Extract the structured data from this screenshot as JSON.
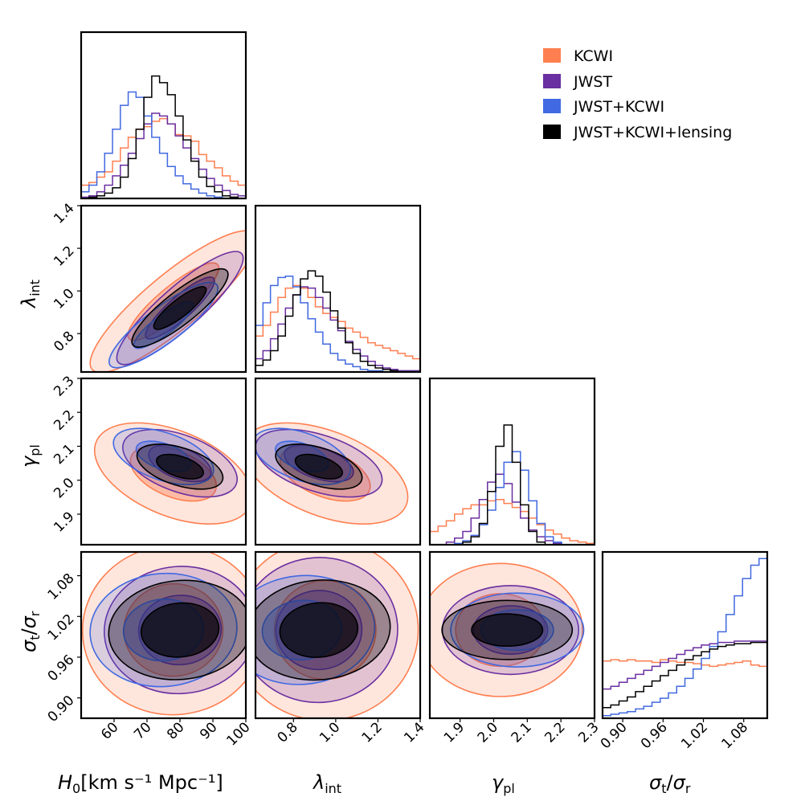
{
  "chart_data": {
    "type": "corner",
    "parameters": [
      "H0",
      "lambda_int",
      "gamma_pl",
      "sigma_ratio"
    ],
    "axis_labels": {
      "H0": "[km s⁻¹ Mpc⁻¹]",
      "lambda_int": "",
      "gamma_pl": "",
      "sigma_ratio": ""
    },
    "ranges": {
      "H0": [
        50,
        100
      ],
      "lambda_int": [
        0.62,
        1.4
      ],
      "gamma_pl": [
        1.81,
        2.3
      ],
      "sigma_ratio": [
        0.87,
        1.115
      ]
    },
    "ticks": {
      "H0": [
        "60",
        "70",
        "80",
        "90",
        "100"
      ],
      "lambda_int": [
        "0.8",
        "1.0",
        "1.2",
        "1.4"
      ],
      "gamma_pl": [
        "1.9",
        "2.0",
        "2.1",
        "2.2",
        "2.3"
      ],
      "sigma_ratio": [
        "0.90",
        "0.96",
        "1.02",
        "1.08"
      ],
      "lambda_int_y": [
        "0.8",
        "1.0",
        "1.2",
        "1.4"
      ],
      "gamma_pl_y": [
        "1.9",
        "2.0",
        "2.1",
        "2.2",
        "2.3"
      ],
      "sigma_ratio_y": [
        "0.90",
        "0.96",
        "1.02",
        "1.08"
      ]
    },
    "legend_position": "top-right",
    "series": [
      {
        "name": "KCWI",
        "color": "#ff7f50",
        "mean": {
          "H0": 78,
          "lambda_int": 0.95,
          "gamma_pl": 2.02,
          "sigma_ratio": 1.0
        },
        "std": {
          "H0": 12,
          "lambda_int": 0.2,
          "gamma_pl": 0.09,
          "sigma_ratio": 0.08
        },
        "hist": {
          "H0": [
            0.1,
            0.12,
            0.16,
            0.2,
            0.28,
            0.38,
            0.46,
            0.52,
            0.54,
            0.58,
            0.6,
            0.56,
            0.48,
            0.47,
            0.43,
            0.33,
            0.28,
            0.23,
            0.17,
            0.13,
            0.1
          ],
          "lambda_int": [
            0.27,
            0.35,
            0.45,
            0.56,
            0.63,
            0.65,
            0.63,
            0.56,
            0.49,
            0.44,
            0.41,
            0.38,
            0.33,
            0.3,
            0.26,
            0.22,
            0.2,
            0.18,
            0.16,
            0.14,
            0.12,
            0.1
          ],
          "gamma_pl": [
            0.1,
            0.14,
            0.18,
            0.23,
            0.27,
            0.3,
            0.3,
            0.33,
            0.34,
            0.31,
            0.28,
            0.25,
            0.2,
            0.15,
            0.11,
            0.08,
            0.05,
            0.03,
            0.02,
            0.01
          ],
          "sigma_ratio": [
            0.43,
            0.44,
            0.43,
            0.44,
            0.43,
            0.43,
            0.42,
            0.44,
            0.43,
            0.42,
            0.42,
            0.41,
            0.4,
            0.39,
            0.4,
            0.41,
            0.42,
            0.43,
            0.4,
            0.39
          ]
        }
      },
      {
        "name": "JWST",
        "color": "#6a2fa0",
        "mean": {
          "H0": 80,
          "lambda_int": 0.92,
          "gamma_pl": 2.05,
          "sigma_ratio": 1.0
        },
        "std": {
          "H0": 9,
          "lambda_int": 0.16,
          "gamma_pl": 0.06,
          "sigma_ratio": 0.07
        },
        "hist": {
          "H0": [
            0.01,
            0.02,
            0.05,
            0.1,
            0.17,
            0.25,
            0.34,
            0.45,
            0.56,
            0.64,
            0.62,
            0.56,
            0.47,
            0.38,
            0.3,
            0.22,
            0.15,
            0.1,
            0.06,
            0.03,
            0.02
          ],
          "lambda_int": [
            0.1,
            0.16,
            0.25,
            0.36,
            0.48,
            0.58,
            0.64,
            0.63,
            0.56,
            0.48,
            0.39,
            0.31,
            0.23,
            0.17,
            0.12,
            0.08,
            0.05,
            0.03,
            0.02,
            0.01,
            0.01,
            0.01
          ],
          "gamma_pl": [
            0.0,
            0.0,
            0.02,
            0.05,
            0.1,
            0.2,
            0.34,
            0.47,
            0.53,
            0.46,
            0.32,
            0.2,
            0.11,
            0.06,
            0.03,
            0.01,
            0.0,
            0.0,
            0.0,
            0.0
          ],
          "sigma_ratio": [
            0.22,
            0.24,
            0.27,
            0.3,
            0.33,
            0.36,
            0.39,
            0.42,
            0.45,
            0.48,
            0.51,
            0.53,
            0.55,
            0.56,
            0.57,
            0.57,
            0.58,
            0.58,
            0.58,
            0.58
          ]
        }
      },
      {
        "name": "JWST+KCWI",
        "color": "#4169e1",
        "mean": {
          "H0": 75,
          "lambda_int": 0.84,
          "gamma_pl": 2.07,
          "sigma_ratio": 1.0
        },
        "std": {
          "H0": 8,
          "lambda_int": 0.12,
          "gamma_pl": 0.05,
          "sigma_ratio": 0.07
        },
        "hist": {
          "H0": [
            0.05,
            0.1,
            0.2,
            0.34,
            0.52,
            0.7,
            0.8,
            0.76,
            0.62,
            0.46,
            0.34,
            0.24,
            0.17,
            0.11,
            0.07,
            0.04,
            0.02,
            0.01,
            0.0,
            0.0,
            0.0
          ],
          "lambda_int": [
            0.35,
            0.52,
            0.65,
            0.71,
            0.72,
            0.64,
            0.52,
            0.4,
            0.3,
            0.21,
            0.14,
            0.09,
            0.06,
            0.04,
            0.02,
            0.01,
            0.01,
            0.0,
            0.0,
            0.0,
            0.0,
            0.0
          ],
          "gamma_pl": [
            0.0,
            0.0,
            0.0,
            0.01,
            0.03,
            0.07,
            0.15,
            0.26,
            0.43,
            0.62,
            0.7,
            0.56,
            0.33,
            0.16,
            0.06,
            0.02,
            0.0,
            0.0,
            0.0,
            0.0
          ],
          "sigma_ratio": [
            0.02,
            0.03,
            0.04,
            0.05,
            0.07,
            0.09,
            0.12,
            0.15,
            0.19,
            0.24,
            0.3,
            0.37,
            0.45,
            0.54,
            0.65,
            0.78,
            0.92,
            1.05,
            1.15,
            1.2
          ]
        }
      },
      {
        "name": "JWST+KCWI+lensing",
        "color": "#000000",
        "mean": {
          "H0": 80,
          "lambda_int": 0.92,
          "gamma_pl": 2.04,
          "sigma_ratio": 1.0
        },
        "std": {
          "H0": 7,
          "lambda_int": 0.11,
          "gamma_pl": 0.04,
          "sigma_ratio": 0.07
        },
        "hist": {
          "H0": [
            0.0,
            0.01,
            0.02,
            0.04,
            0.08,
            0.16,
            0.3,
            0.52,
            0.76,
            0.92,
            0.87,
            0.78,
            0.62,
            0.44,
            0.28,
            0.16,
            0.09,
            0.05,
            0.02,
            0.01,
            0.0
          ],
          "lambda_int": [
            0.05,
            0.09,
            0.16,
            0.27,
            0.42,
            0.58,
            0.7,
            0.76,
            0.72,
            0.6,
            0.46,
            0.33,
            0.22,
            0.14,
            0.08,
            0.05,
            0.03,
            0.02,
            0.01,
            0.0,
            0.0,
            0.0
          ],
          "gamma_pl": [
            0.0,
            0.0,
            0.0,
            0.0,
            0.02,
            0.06,
            0.16,
            0.4,
            0.74,
            0.9,
            0.62,
            0.3,
            0.1,
            0.02,
            0.0,
            0.0,
            0.0,
            0.0,
            0.0,
            0.0
          ],
          "sigma_ratio": [
            0.08,
            0.1,
            0.13,
            0.16,
            0.2,
            0.24,
            0.28,
            0.32,
            0.36,
            0.4,
            0.44,
            0.47,
            0.5,
            0.52,
            0.54,
            0.55,
            0.56,
            0.56,
            0.57,
            0.57
          ]
        }
      }
    ]
  }
}
